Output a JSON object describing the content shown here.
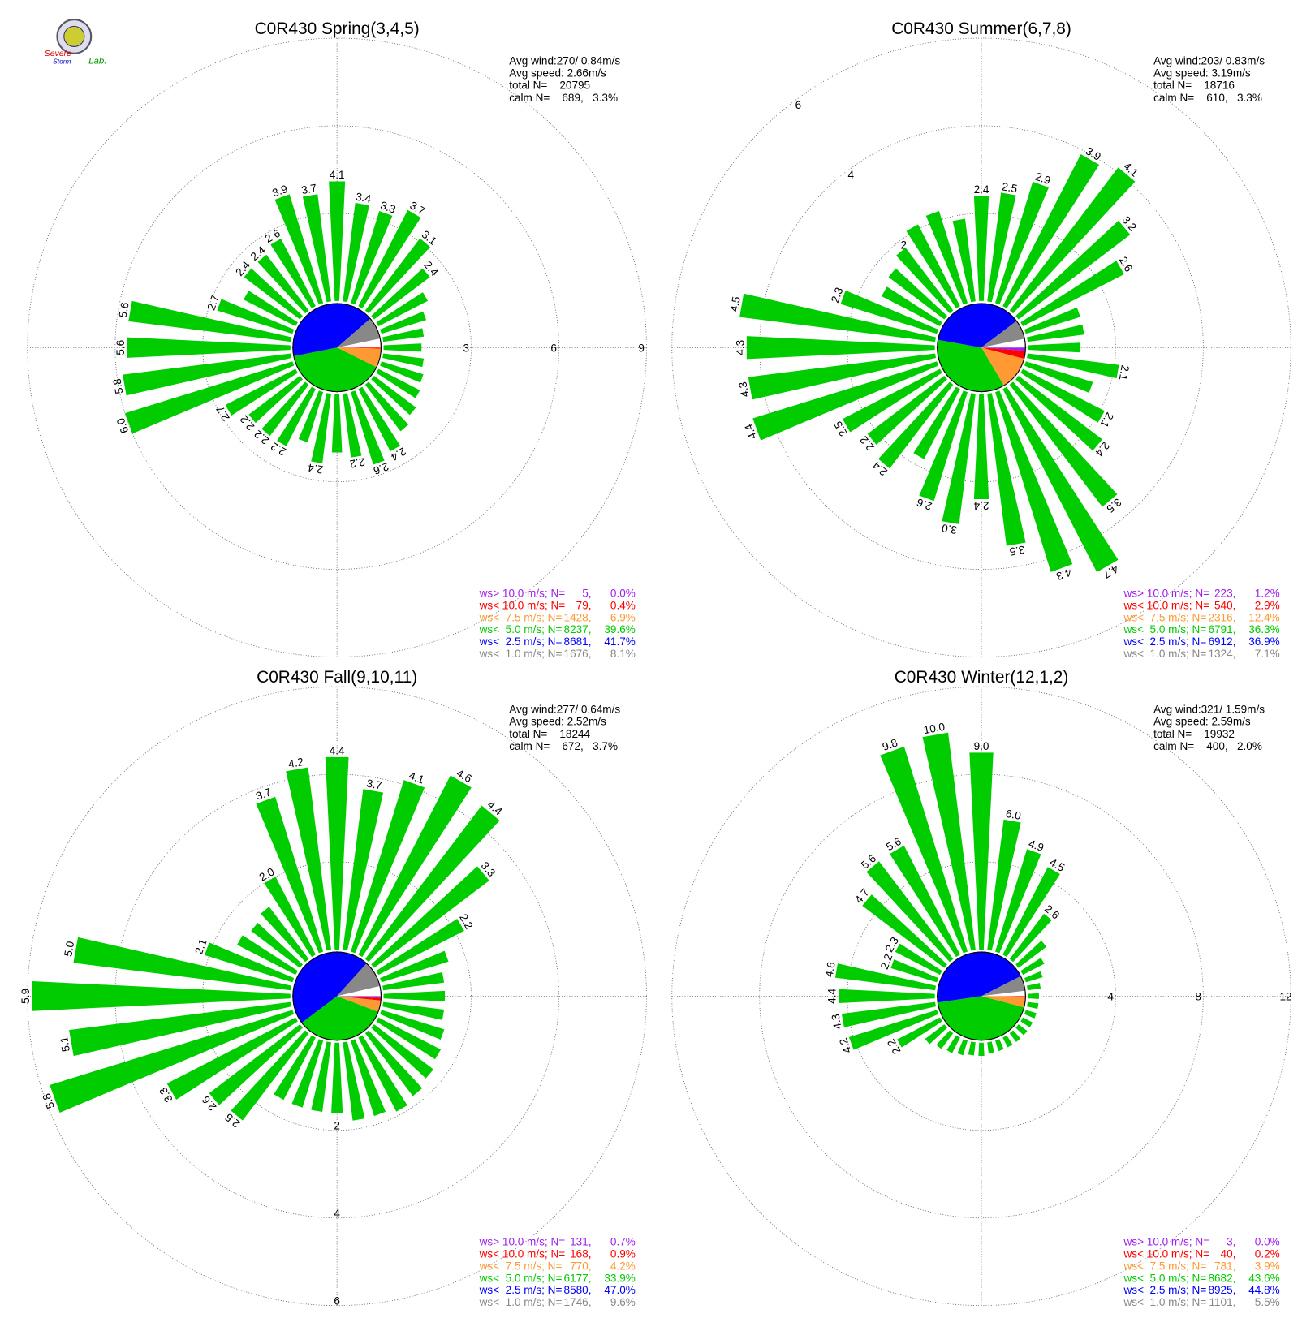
{
  "logo": {
    "line1": "Severe",
    "line2": "Storm",
    "line3": "Lab."
  },
  "chart_data": [
    {
      "type": "windrose",
      "title": "C0R430 Spring(3,4,5)",
      "rlim": [
        0,
        9
      ],
      "rticks": [
        3,
        6,
        9
      ],
      "rtick_side": "east",
      "bar_color": "#00cc00",
      "stats": [
        "Avg wind:270/ 0.84m/s",
        "Avg speed: 2.66m/s",
        "total N=    20795",
        "calm N=    689,   3.3%"
      ],
      "values": [
        4.1,
        3.4,
        3.3,
        3.7,
        3.1,
        2.4,
        1.9,
        1.6,
        1.4,
        1.3,
        1.4,
        1.5,
        1.6,
        1.8,
        2.0,
        2.4,
        2.6,
        2.2,
        2.0,
        2.4,
        1.8,
        2.2,
        2.2,
        2.2,
        2.7,
        6.0,
        5.8,
        5.6,
        5.6,
        2.7,
        2.0,
        2.4,
        2.4,
        2.6,
        3.9,
        3.7
      ],
      "value_labels": [
        "4.1",
        "3.4",
        "3.3",
        "3.7",
        "3.1",
        "2.4",
        null,
        null,
        null,
        null,
        null,
        null,
        null,
        null,
        null,
        "2.4",
        "2.6",
        "2.2",
        null,
        "2.4",
        null,
        "2.2",
        "2.2",
        "2.2",
        "2.7",
        "6.0",
        "5.8",
        "5.6",
        "5.6",
        "2.7",
        null,
        "2.4",
        "2.4",
        "2.6",
        "3.9",
        "3.7"
      ],
      "classes": [
        {
          "name": "ws> 10.0 m/s; N=",
          "color": "#a020f0",
          "n": {
            "value": 5,
            "label": "5,"
          },
          "percent": {
            "value": 0.0,
            "label": "0.0%"
          }
        },
        {
          "name": "ws< 10.0 m/s; N=",
          "color": "#ff0000",
          "n": {
            "value": 79,
            "label": "79,"
          },
          "percent": {
            "value": 0.4,
            "label": "0.4%"
          }
        },
        {
          "name": "ws<  7.5 m/s; N=",
          "color": "#ff9933",
          "n": {
            "value": 1428,
            "label": "1428,"
          },
          "percent": {
            "value": 6.9,
            "label": "6.9%"
          }
        },
        {
          "name": "ws<  5.0 m/s; N=",
          "color": "#00cc00",
          "n": {
            "value": 8237,
            "label": "8237,"
          },
          "percent": {
            "value": 39.6,
            "label": "39.6%"
          }
        },
        {
          "name": "ws<  2.5 m/s; N=",
          "color": "#0000ff",
          "n": {
            "value": 8681,
            "label": "8681,"
          },
          "percent": {
            "value": 41.7,
            "label": "41.7%"
          }
        },
        {
          "name": "ws<  1.0 m/s; N=",
          "color": "#888888",
          "n": {
            "value": 1676,
            "label": "1676,"
          },
          "percent": {
            "value": 8.1,
            "label": "8.1%"
          }
        }
      ]
    },
    {
      "type": "windrose",
      "title": "C0R430 Summer(6,7,8)",
      "rlim": [
        0,
        6
      ],
      "rticks": [
        2,
        4,
        6
      ],
      "rtick_side": "northwest",
      "bar_color": "#00cc00",
      "stats": [
        "Avg wind:203/ 0.83m/s",
        "Avg speed: 3.19m/s",
        "total N=    18716",
        "calm N=    610,   3.3%"
      ],
      "values": [
        2.4,
        2.5,
        2.9,
        3.9,
        4.1,
        3.2,
        2.6,
        1.3,
        1.3,
        1.2,
        2.1,
        1.6,
        2.1,
        2.4,
        3.5,
        4.7,
        4.3,
        3.5,
        2.4,
        3.0,
        2.6,
        1.8,
        2.4,
        2.2,
        2.5,
        4.4,
        4.3,
        4.3,
        4.5,
        2.3,
        1.5,
        1.6,
        1.8,
        2.1,
        2.2,
        1.9
      ],
      "value_labels": [
        "2.4",
        "2.5",
        "2.9",
        "3.9",
        "4.1",
        "3.2",
        "2.6",
        null,
        null,
        null,
        "2.1",
        null,
        "2.1",
        "2.4",
        "3.5",
        "4.7",
        "4.3",
        "3.5",
        "2.4",
        "3.0",
        "2.6",
        null,
        "2.4",
        "2.2",
        "2.5",
        "4.4",
        "4.3",
        "4.3",
        "4.5",
        "2.3",
        null,
        null,
        null,
        null,
        null,
        null
      ],
      "classes": [
        {
          "name": "ws> 10.0 m/s; N=",
          "color": "#a020f0",
          "n": {
            "value": 223,
            "label": "223,"
          },
          "percent": {
            "value": 1.2,
            "label": "1.2%"
          }
        },
        {
          "name": "ws< 10.0 m/s; N=",
          "color": "#ff0000",
          "n": {
            "value": 540,
            "label": "540,"
          },
          "percent": {
            "value": 2.9,
            "label": "2.9%"
          }
        },
        {
          "name": "ws<  7.5 m/s; N=",
          "color": "#ff9933",
          "n": {
            "value": 2316,
            "label": "2316,"
          },
          "percent": {
            "value": 12.4,
            "label": "12.4%"
          }
        },
        {
          "name": "ws<  5.0 m/s; N=",
          "color": "#00cc00",
          "n": {
            "value": 6791,
            "label": "6791,"
          },
          "percent": {
            "value": 36.3,
            "label": "36.3%"
          }
        },
        {
          "name": "ws<  2.5 m/s; N=",
          "color": "#0000ff",
          "n": {
            "value": 6912,
            "label": "6912,"
          },
          "percent": {
            "value": 36.9,
            "label": "36.9%"
          }
        },
        {
          "name": "ws<  1.0 m/s; N=",
          "color": "#888888",
          "n": {
            "value": 1324,
            "label": "1324,"
          },
          "percent": {
            "value": 7.1,
            "label": "7.1%"
          }
        }
      ]
    },
    {
      "type": "windrose",
      "title": "C0R430 Fall(9,10,11)",
      "rlim": [
        0,
        6
      ],
      "rticks": [
        2,
        4,
        6
      ],
      "rtick_side": "south",
      "bar_color": "#00cc00",
      "stats": [
        "Avg wind:277/ 0.64m/s",
        "Avg speed: 2.52m/s",
        "total N=    18244",
        "calm N=    672,   3.7%"
      ],
      "values": [
        4.4,
        3.7,
        4.1,
        4.6,
        4.4,
        3.3,
        2.2,
        1.6,
        1.4,
        1.4,
        1.4,
        1.5,
        1.6,
        1.7,
        1.8,
        1.9,
        1.8,
        1.8,
        1.6,
        1.6,
        1.6,
        1.6,
        2.5,
        2.6,
        3.3,
        5.8,
        5.1,
        5.9,
        5.0,
        2.1,
        1.5,
        1.4,
        1.5,
        2.0,
        3.7,
        4.2
      ],
      "value_labels": [
        "4.4",
        "3.7",
        "4.1",
        "4.6",
        "4.4",
        "3.3",
        "2.2",
        null,
        null,
        null,
        null,
        null,
        null,
        null,
        null,
        null,
        null,
        null,
        null,
        null,
        null,
        null,
        "2.5",
        "2.6",
        "3.3",
        "5.8",
        "5.1",
        "5.9",
        "5.0",
        "2.1",
        null,
        null,
        null,
        "2.0",
        "3.7",
        "4.2"
      ],
      "classes": [
        {
          "name": "ws> 10.0 m/s; N=",
          "color": "#a020f0",
          "n": {
            "value": 131,
            "label": "131,"
          },
          "percent": {
            "value": 0.7,
            "label": "0.7%"
          }
        },
        {
          "name": "ws< 10.0 m/s; N=",
          "color": "#ff0000",
          "n": {
            "value": 168,
            "label": "168,"
          },
          "percent": {
            "value": 0.9,
            "label": "0.9%"
          }
        },
        {
          "name": "ws<  7.5 m/s; N=",
          "color": "#ff9933",
          "n": {
            "value": 770,
            "label": "770,"
          },
          "percent": {
            "value": 4.2,
            "label": "4.2%"
          }
        },
        {
          "name": "ws<  5.0 m/s; N=",
          "color": "#00cc00",
          "n": {
            "value": 6177,
            "label": "6177,"
          },
          "percent": {
            "value": 33.9,
            "label": "33.9%"
          }
        },
        {
          "name": "ws<  2.5 m/s; N=",
          "color": "#0000ff",
          "n": {
            "value": 8580,
            "label": "8580,"
          },
          "percent": {
            "value": 47.0,
            "label": "47.0%"
          }
        },
        {
          "name": "ws<  1.0 m/s; N=",
          "color": "#888888",
          "n": {
            "value": 1746,
            "label": "1746,"
          },
          "percent": {
            "value": 9.6,
            "label": "9.6%"
          }
        }
      ]
    },
    {
      "type": "windrose",
      "title": "C0R430 Winter(12,1,2)",
      "rlim": [
        0,
        12
      ],
      "rticks": [
        4,
        8,
        12
      ],
      "rtick_side": "east",
      "bar_color": "#00cc00",
      "stats": [
        "Avg wind:321/ 1.59m/s",
        "Avg speed: 2.59m/s",
        "total N=    19932",
        "calm N=    400,   2.0%"
      ],
      "values": [
        9.0,
        6.0,
        4.9,
        4.5,
        2.6,
        1.6,
        1.1,
        0.8,
        0.6,
        0.5,
        0.5,
        0.5,
        0.5,
        0.5,
        0.5,
        0.5,
        0.5,
        0.5,
        0.6,
        0.6,
        0.7,
        0.8,
        0.9,
        1.1,
        2.2,
        4.2,
        4.3,
        4.4,
        4.6,
        2.2,
        2.3,
        4.7,
        5.6,
        5.6,
        9.8,
        10.0
      ],
      "value_labels": [
        "9.0",
        "6.0",
        "4.9",
        "4.5",
        "2.6",
        null,
        null,
        null,
        null,
        null,
        null,
        null,
        null,
        null,
        null,
        null,
        null,
        null,
        null,
        null,
        null,
        null,
        null,
        null,
        "2.2",
        "4.2",
        "4.3",
        "4.4",
        "4.6",
        "2.2",
        "2.3",
        "4.7",
        "5.6",
        "5.6",
        "9.8",
        "10.0"
      ],
      "classes": [
        {
          "name": "ws> 10.0 m/s; N=",
          "color": "#a020f0",
          "n": {
            "value": 3,
            "label": "3,"
          },
          "percent": {
            "value": 0.0,
            "label": "0.0%"
          }
        },
        {
          "name": "ws< 10.0 m/s; N=",
          "color": "#ff0000",
          "n": {
            "value": 40,
            "label": "40,"
          },
          "percent": {
            "value": 0.2,
            "label": "0.2%"
          }
        },
        {
          "name": "ws<  7.5 m/s; N=",
          "color": "#ff9933",
          "n": {
            "value": 781,
            "label": "781,"
          },
          "percent": {
            "value": 3.9,
            "label": "3.9%"
          }
        },
        {
          "name": "ws<  5.0 m/s; N=",
          "color": "#00cc00",
          "n": {
            "value": 8682,
            "label": "8682,"
          },
          "percent": {
            "value": 43.6,
            "label": "43.6%"
          }
        },
        {
          "name": "ws<  2.5 m/s; N=",
          "color": "#0000ff",
          "n": {
            "value": 8925,
            "label": "8925,"
          },
          "percent": {
            "value": 44.8,
            "label": "44.8%"
          }
        },
        {
          "name": "ws<  1.0 m/s; N=",
          "color": "#888888",
          "n": {
            "value": 1101,
            "label": "1101,"
          },
          "percent": {
            "value": 5.5,
            "label": "5.5%"
          }
        }
      ]
    }
  ]
}
